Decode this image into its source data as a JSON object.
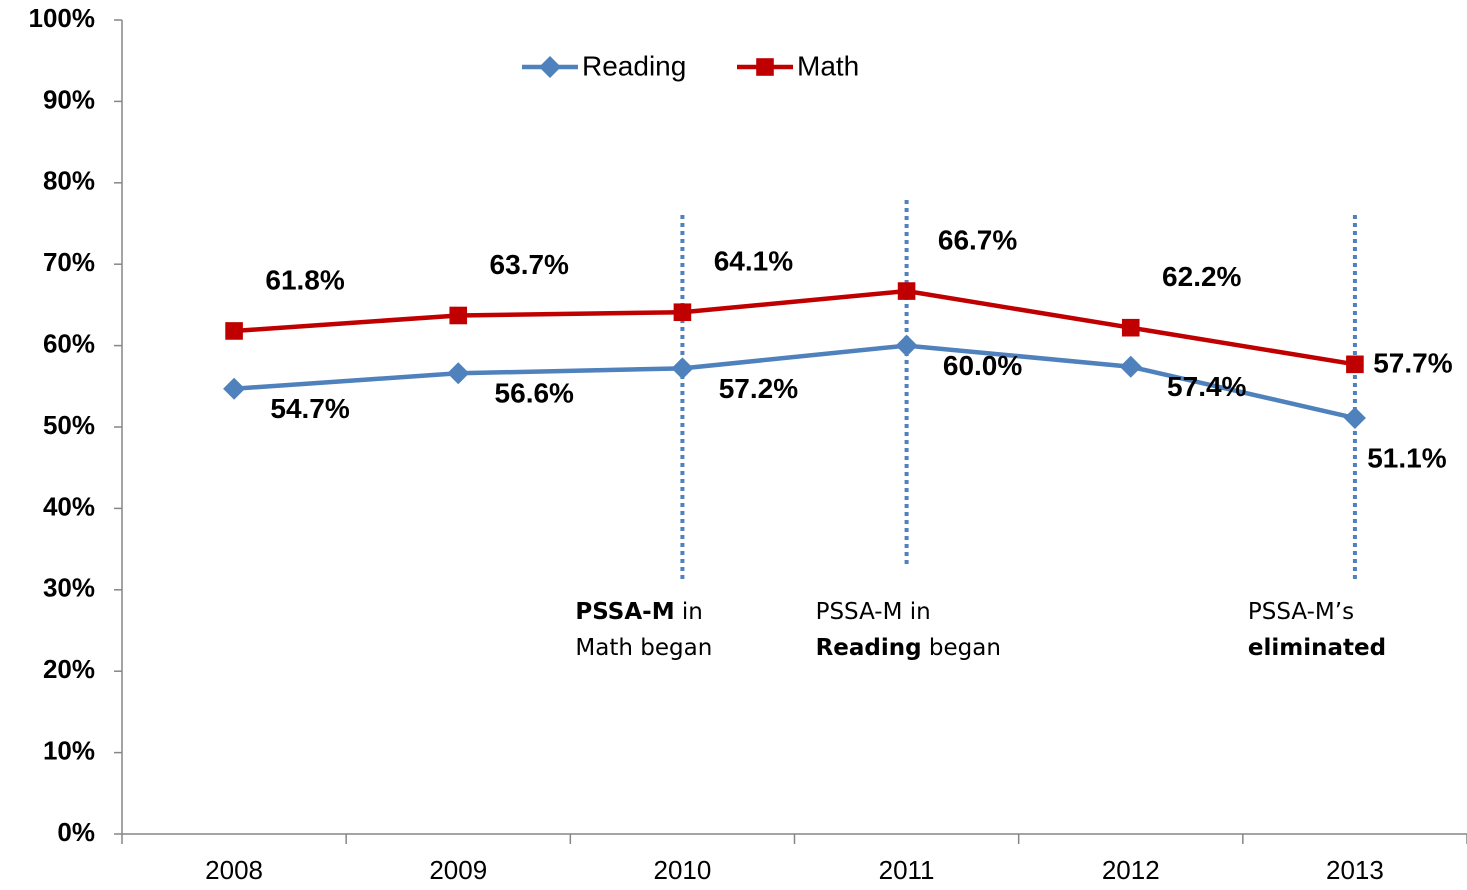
{
  "chart_data": {
    "type": "line",
    "categories": [
      "2008",
      "2009",
      "2010",
      "2011",
      "2012",
      "2013"
    ],
    "series": [
      {
        "name": "Reading",
        "color": "#4f81bd",
        "marker": "diamond",
        "values": [
          54.7,
          56.6,
          57.2,
          60.0,
          57.4,
          51.1
        ],
        "value_labels": [
          "54.7%",
          "56.6%",
          "57.2%",
          "60.0%",
          "57.4%",
          "51.1%"
        ]
      },
      {
        "name": "Math",
        "color": "#c00000",
        "marker": "square",
        "values": [
          61.8,
          63.7,
          64.1,
          66.7,
          62.2,
          57.7
        ],
        "value_labels": [
          "61.8%",
          "63.7%",
          "64.1%",
          "66.7%",
          "62.2%",
          "57.7%"
        ]
      }
    ],
    "ylim": [
      0,
      100
    ],
    "yticks": [
      {
        "value": 0,
        "label": "0%"
      },
      {
        "value": 10,
        "label": "10%"
      },
      {
        "value": 20,
        "label": "20%"
      },
      {
        "value": 30,
        "label": "30%"
      },
      {
        "value": 40,
        "label": "40%"
      },
      {
        "value": 50,
        "label": "50%"
      },
      {
        "value": 60,
        "label": "60%"
      },
      {
        "value": 70,
        "label": "70%"
      },
      {
        "value": 80,
        "label": "80%"
      },
      {
        "value": 90,
        "label": "90%"
      },
      {
        "value": 100,
        "label": "100%"
      }
    ],
    "grid": false,
    "legend": "top",
    "annotations": [
      {
        "category": "2010",
        "lines": [
          [
            {
              "text": "PSSA-M",
              "bold": true
            },
            {
              "text": " in",
              "bold": false
            }
          ],
          [
            {
              "text": "Math began",
              "bold": false
            }
          ]
        ]
      },
      {
        "category": "2011",
        "lines": [
          [
            {
              "text": "PSSA-M in",
              "bold": false
            }
          ],
          [
            {
              "text": "Reading",
              "bold": true
            },
            {
              "text": " began",
              "bold": false
            }
          ]
        ]
      },
      {
        "category": "2013",
        "lines": [
          [
            {
              "text": "PSSA-M’s",
              "bold": false
            }
          ],
          [
            {
              "text": "eliminated",
              "bold": true
            }
          ]
        ]
      }
    ]
  }
}
